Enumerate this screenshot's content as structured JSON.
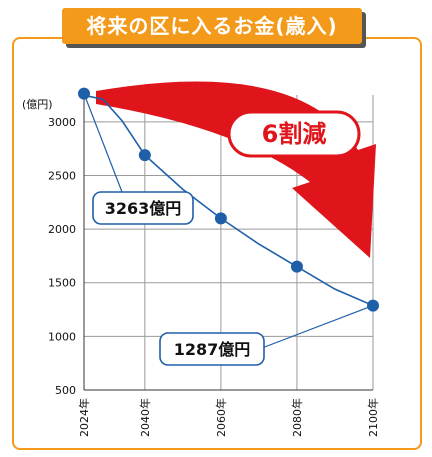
{
  "header": {
    "title": "将来の区に入るお金(歳入)"
  },
  "callout": {
    "text": "6割減"
  },
  "colors": {
    "accent": "#f39a1b",
    "line": "#1f5fa8",
    "arrow": "#e0141b",
    "grid": "#9a9a9a"
  },
  "chart_data": {
    "type": "line",
    "title": "将来の区に入るお金(歳入)",
    "ylabel": "(億円)",
    "xlabel": "",
    "x_ticks": [
      "2024年",
      "2040年",
      "2060年",
      "2080年",
      "2100年"
    ],
    "x_tick_values": [
      2024,
      2040,
      2060,
      2080,
      2100
    ],
    "y_ticks": [
      500,
      1000,
      1500,
      2000,
      2500,
      3000
    ],
    "ylim": [
      500,
      3250
    ],
    "xlim": [
      2024,
      2100
    ],
    "grid": true,
    "series": [
      {
        "line": [
          {
            "x": 2024,
            "y": 3263
          },
          {
            "x": 2025,
            "y": 3240
          },
          {
            "x": 2029,
            "y": 3210
          },
          {
            "x": 2034,
            "y": 3010
          },
          {
            "x": 2040,
            "y": 2690
          },
          {
            "x": 2050,
            "y": 2370
          },
          {
            "x": 2060,
            "y": 2100
          },
          {
            "x": 2070,
            "y": 1860
          },
          {
            "x": 2080,
            "y": 1650
          },
          {
            "x": 2090,
            "y": 1440
          },
          {
            "x": 2100,
            "y": 1287
          }
        ],
        "markers": [
          {
            "x": 2024,
            "y": 3263
          },
          {
            "x": 2040,
            "y": 2690
          },
          {
            "x": 2060,
            "y": 2100
          },
          {
            "x": 2080,
            "y": 1650
          },
          {
            "x": 2100,
            "y": 1287
          }
        ]
      }
    ],
    "annotations": [
      {
        "text": "3263億円",
        "x": 2024,
        "y": 3263
      },
      {
        "text": "1287億円",
        "x": 2100,
        "y": 1287
      }
    ]
  }
}
